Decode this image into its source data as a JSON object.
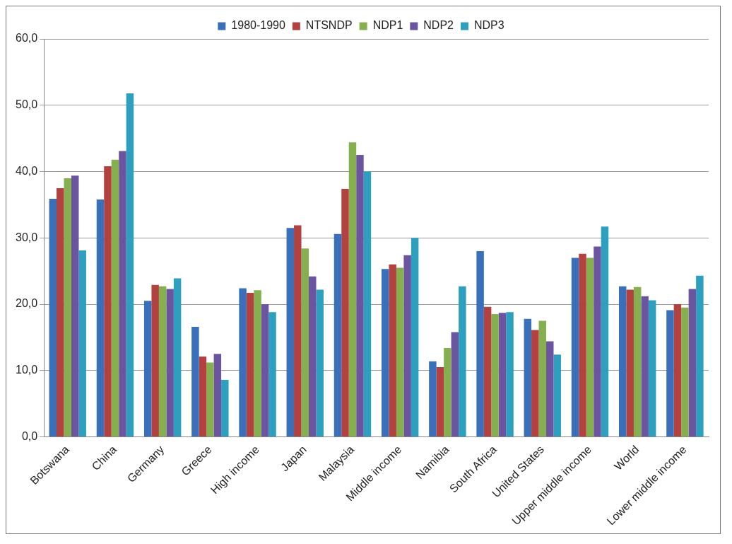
{
  "chart_data": {
    "type": "bar",
    "categories": [
      "Botswana",
      "China",
      "Germany",
      "Greece",
      "High income",
      "Japan",
      "Malaysia",
      "Middle income",
      "Namibia",
      "South Africa",
      "United States",
      "Upper middle income",
      "World",
      "Lower middle income"
    ],
    "series": [
      {
        "name": "1980-1990",
        "color": "#3a6fba",
        "values": [
          35.9,
          35.8,
          20.5,
          16.6,
          22.4,
          31.5,
          30.6,
          25.3,
          11.4,
          28.0,
          17.8,
          27.0,
          22.7,
          19.1
        ]
      },
      {
        "name": "NTSNDP",
        "color": "#b3413f",
        "values": [
          37.5,
          40.8,
          22.9,
          12.1,
          21.7,
          31.9,
          37.4,
          26.0,
          10.5,
          19.6,
          16.1,
          27.6,
          22.2,
          20.0
        ]
      },
      {
        "name": "NDP1",
        "color": "#86b04f",
        "values": [
          39.0,
          41.8,
          22.7,
          11.2,
          22.1,
          28.4,
          44.4,
          25.5,
          13.4,
          18.5,
          17.5,
          27.0,
          22.6,
          19.5
        ]
      },
      {
        "name": "NDP2",
        "color": "#6c55a0",
        "values": [
          39.4,
          43.1,
          22.3,
          12.5,
          20.0,
          24.2,
          42.5,
          27.4,
          15.8,
          18.7,
          14.4,
          28.7,
          21.2,
          22.3
        ]
      },
      {
        "name": "NDP3",
        "color": "#2da0c0",
        "values": [
          28.1,
          51.8,
          23.9,
          8.6,
          18.8,
          22.2,
          40.0,
          30.0,
          22.7,
          18.8,
          12.4,
          31.7,
          20.6,
          24.3
        ]
      }
    ],
    "ylim": [
      0,
      60
    ],
    "yticks": [
      {
        "value": 0,
        "label": "0,0"
      },
      {
        "value": 10,
        "label": "10,0"
      },
      {
        "value": 20,
        "label": "20,0"
      },
      {
        "value": 30,
        "label": "30,0"
      },
      {
        "value": 40,
        "label": "40,0"
      },
      {
        "value": 50,
        "label": "50,0"
      },
      {
        "value": 60,
        "label": "60,0"
      }
    ],
    "grid": "y",
    "legend": "top"
  }
}
